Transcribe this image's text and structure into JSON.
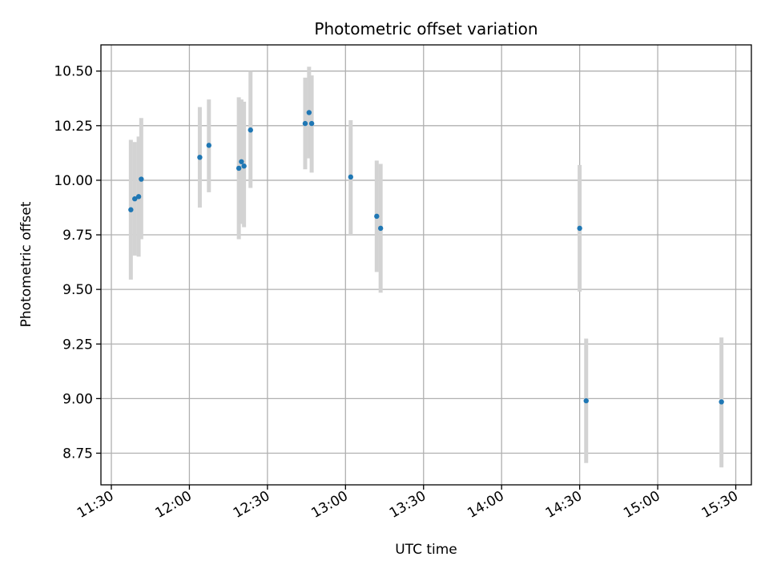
{
  "chart_data": {
    "type": "scatter",
    "title": "Photometric offset variation",
    "xlabel": "UTC time",
    "ylabel": "Photometric offset",
    "x_axis_kind": "time",
    "xlim": [
      "11:26",
      "15:36"
    ],
    "ylim": [
      8.605,
      10.62
    ],
    "x_ticks": [
      "11:30",
      "12:00",
      "12:30",
      "13:00",
      "13:30",
      "14:00",
      "14:30",
      "15:00",
      "15:30"
    ],
    "y_ticks": [
      "8.75",
      "9.00",
      "9.25",
      "9.50",
      "9.75",
      "10.00",
      "10.25",
      "10.50"
    ],
    "grid": true,
    "legend": "none",
    "colors": {
      "points": "#1f77b4",
      "errorbars": "#d3d3d3",
      "grid": "#b0b0b0"
    },
    "series": [
      {
        "points": [
          {
            "x": "11:37:30",
            "y": 9.865,
            "yerr_low": 9.545,
            "yerr_high": 10.185
          },
          {
            "x": "11:39:00",
            "y": 9.915,
            "yerr_low": 9.655,
            "yerr_high": 10.175
          },
          {
            "x": "11:40:30",
            "y": 9.925,
            "yerr_low": 9.65,
            "yerr_high": 10.2
          },
          {
            "x": "11:41:30",
            "y": 10.005,
            "yerr_low": 9.73,
            "yerr_high": 10.285
          },
          {
            "x": "12:04:00",
            "y": 10.105,
            "yerr_low": 9.875,
            "yerr_high": 10.335
          },
          {
            "x": "12:07:30",
            "y": 10.16,
            "yerr_low": 9.945,
            "yerr_high": 10.37
          },
          {
            "x": "12:19:00",
            "y": 10.055,
            "yerr_low": 9.73,
            "yerr_high": 10.38
          },
          {
            "x": "12:20:00",
            "y": 10.085,
            "yerr_low": 9.8,
            "yerr_high": 10.37
          },
          {
            "x": "12:21:00",
            "y": 10.065,
            "yerr_low": 9.785,
            "yerr_high": 10.36
          },
          {
            "x": "12:23:30",
            "y": 10.23,
            "yerr_low": 9.965,
            "yerr_high": 10.5
          },
          {
            "x": "12:44:30",
            "y": 10.26,
            "yerr_low": 10.05,
            "yerr_high": 10.47
          },
          {
            "x": "12:46:00",
            "y": 10.31,
            "yerr_low": 10.1,
            "yerr_high": 10.52
          },
          {
            "x": "12:47:00",
            "y": 10.26,
            "yerr_low": 10.035,
            "yerr_high": 10.48
          },
          {
            "x": "13:02:00",
            "y": 10.015,
            "yerr_low": 9.75,
            "yerr_high": 10.275
          },
          {
            "x": "13:12:00",
            "y": 9.835,
            "yerr_low": 9.58,
            "yerr_high": 10.09
          },
          {
            "x": "13:13:30",
            "y": 9.78,
            "yerr_low": 9.485,
            "yerr_high": 10.075
          },
          {
            "x": "14:30:00",
            "y": 9.78,
            "yerr_low": 9.49,
            "yerr_high": 10.07
          },
          {
            "x": "14:32:30",
            "y": 8.99,
            "yerr_low": 8.705,
            "yerr_high": 9.275
          },
          {
            "x": "15:24:30",
            "y": 8.985,
            "yerr_low": 8.685,
            "yerr_high": 9.28
          }
        ]
      }
    ]
  }
}
